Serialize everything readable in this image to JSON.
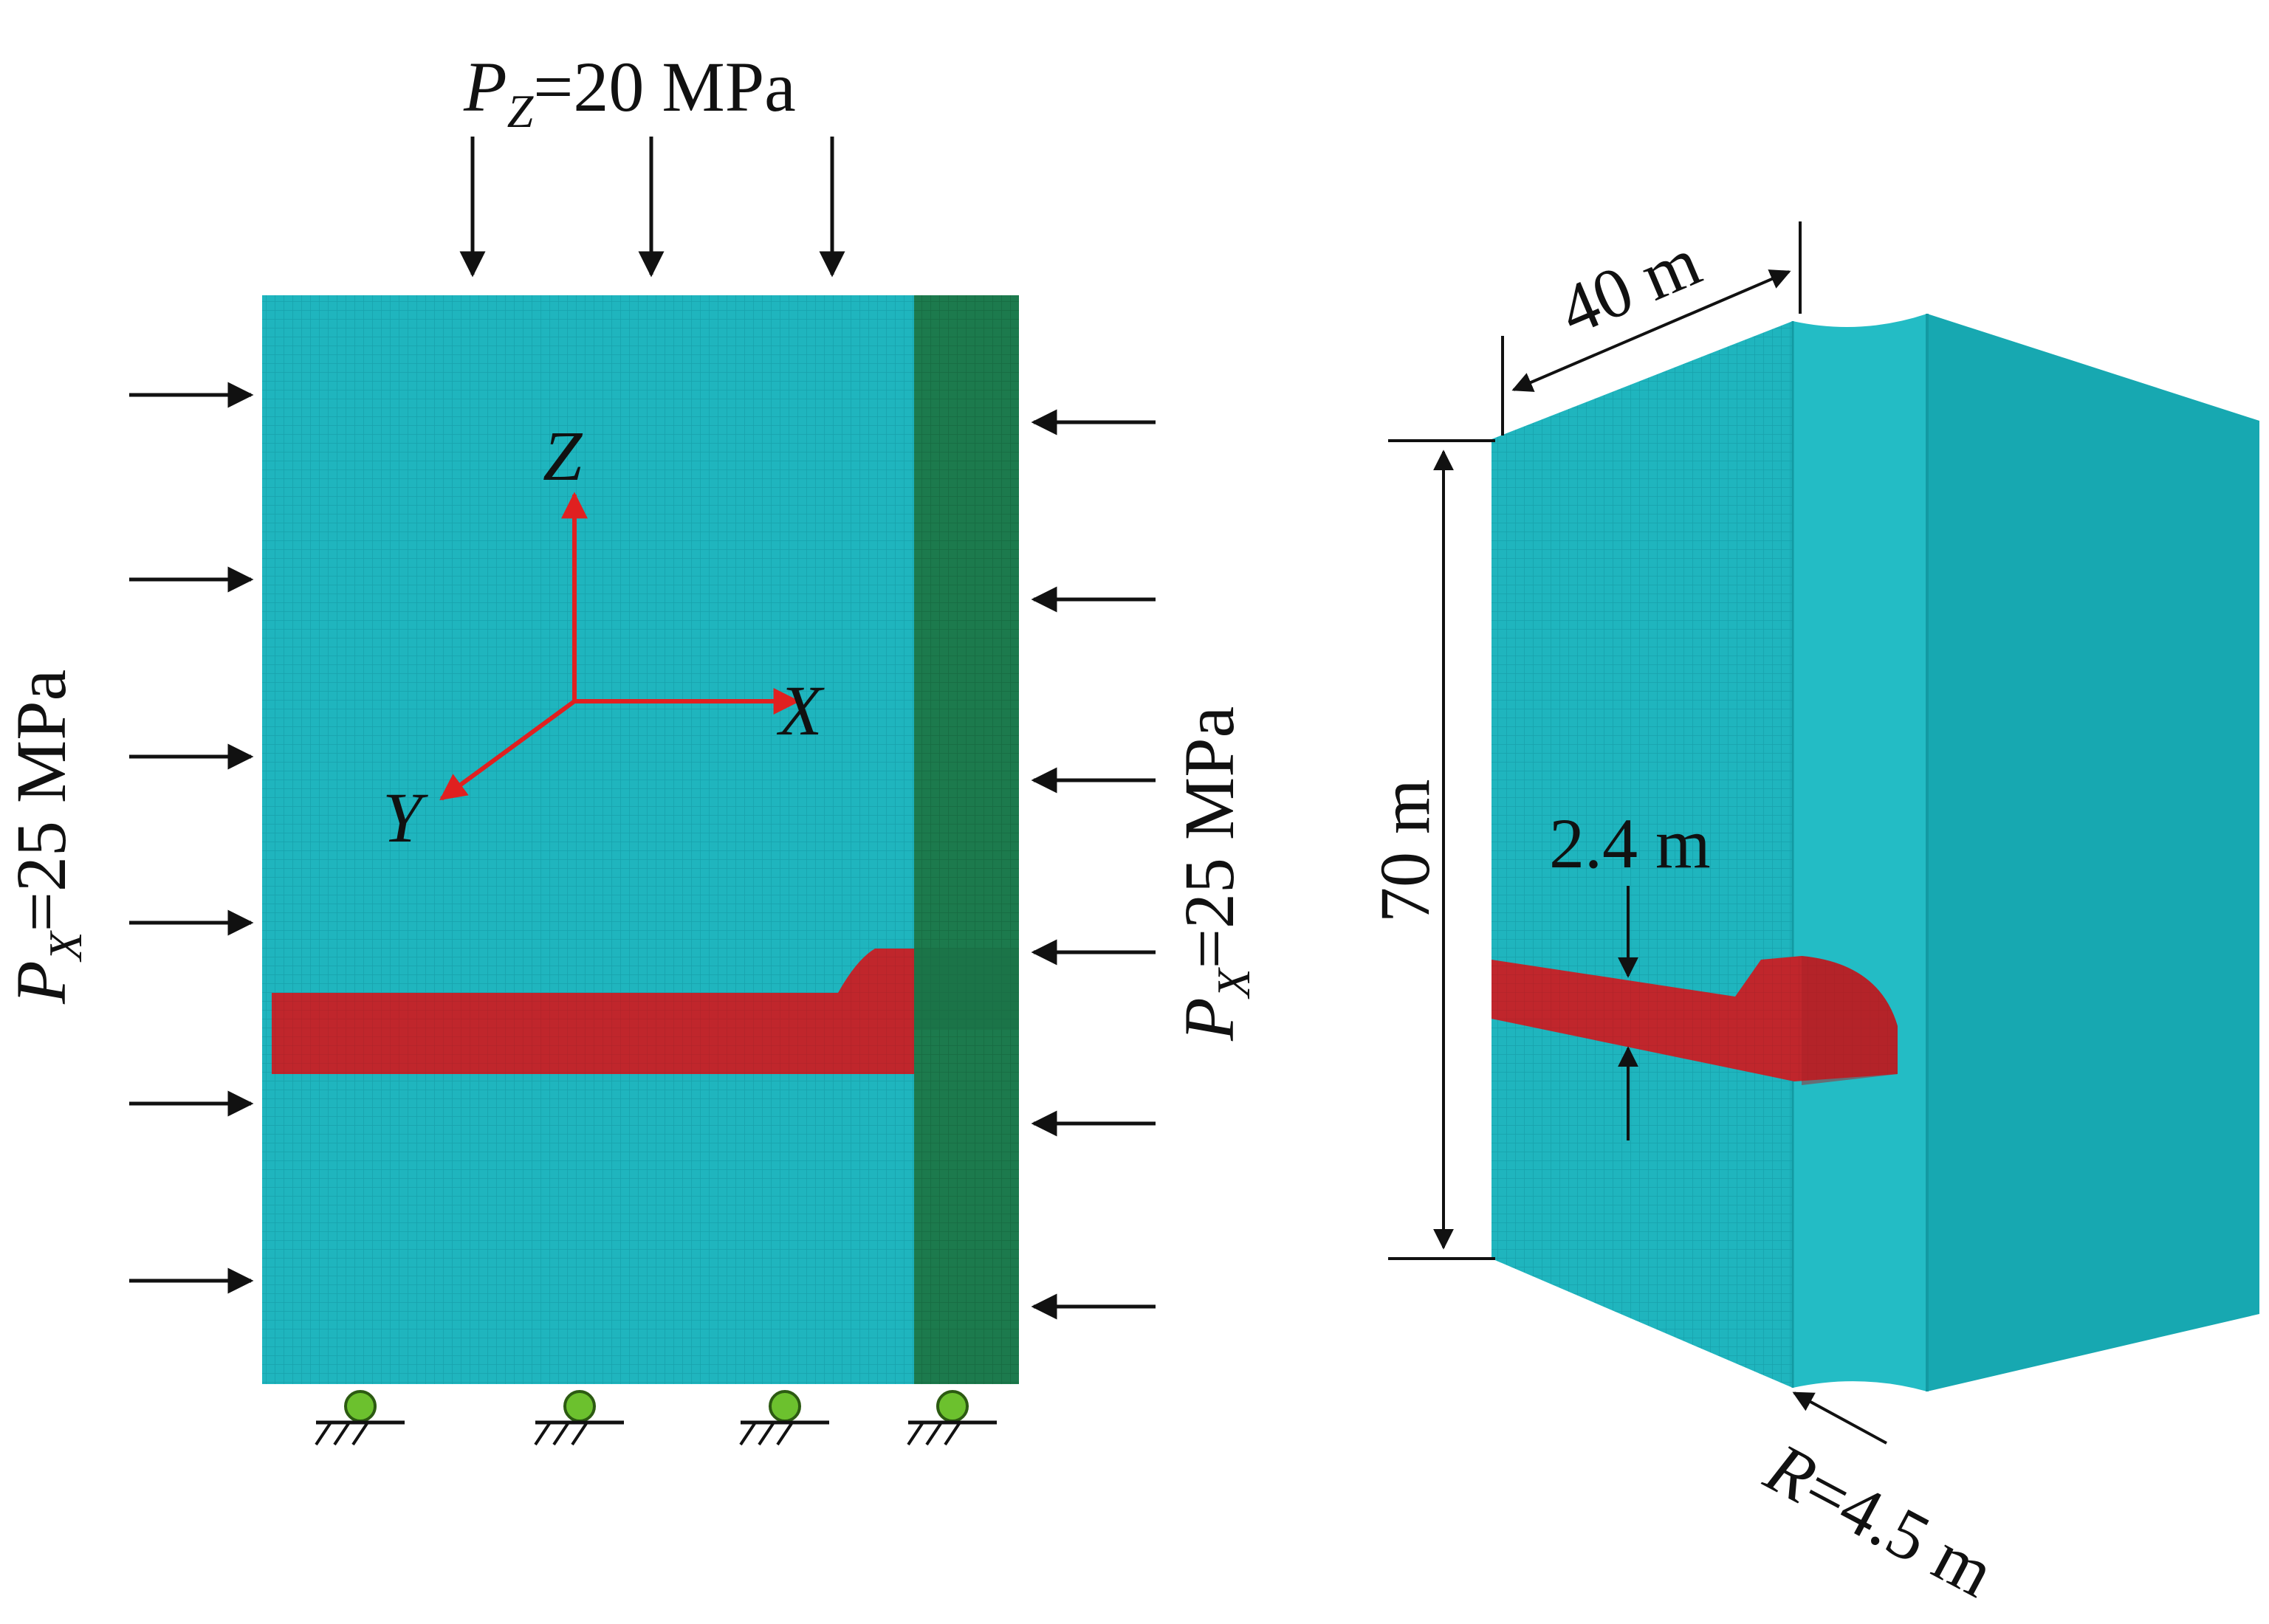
{
  "colors": {
    "model": "#1fb5be",
    "grid_line": "#17a2ab",
    "side_face": "#17a8b1",
    "side_face_dark": "#139aa3",
    "fault_band": "#1c7a4d",
    "tunnel": "#c0262c",
    "tunnel_dark": "#a81f25",
    "axis": "#e02020",
    "support_ball": "#6cc12e",
    "arrow": "#111111"
  },
  "left_view": {
    "top_load": {
      "symbol": "P",
      "subscript": "Z",
      "value": "=20 MPa"
    },
    "left_load": {
      "symbol": "P",
      "subscript": "X",
      "value": "=25 MPa"
    },
    "right_load": {
      "symbol": "P",
      "subscript": "X",
      "value": "=25 MPa"
    },
    "axes": {
      "z": "Z",
      "x": "X",
      "y": "Y"
    },
    "supports": [
      "roller",
      "roller",
      "roller",
      "roller"
    ]
  },
  "right_view": {
    "width_label": "40 m",
    "height_label": "70 m",
    "tunnel_height_label": "2.4 m",
    "radius_label": "R=4.5 m"
  }
}
